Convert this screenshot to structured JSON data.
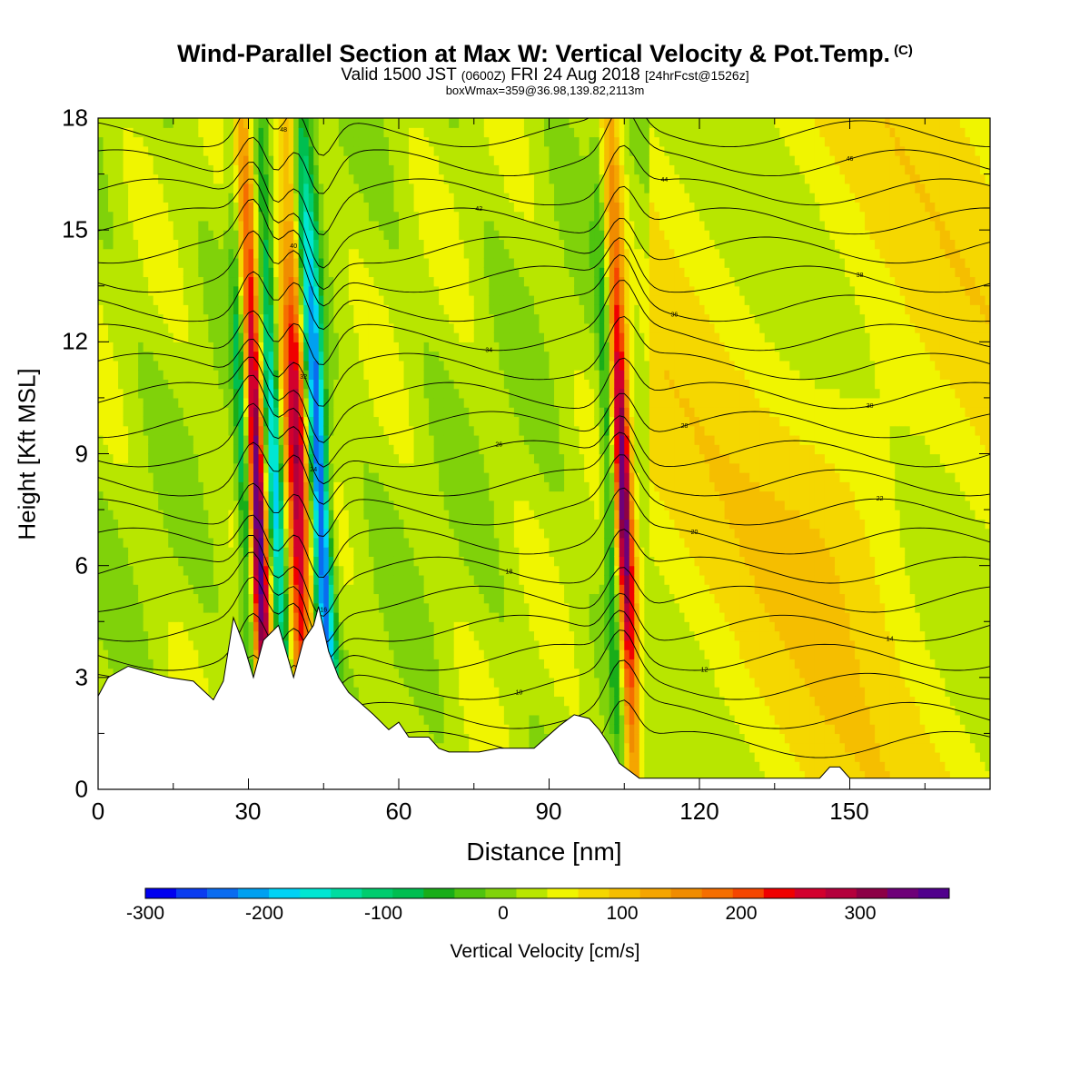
{
  "header": {
    "title": "Wind-Parallel Section at Max W: Vertical Velocity & Pot.Temp.",
    "title_mark": "(C)",
    "subtitle_pre": "Valid 1500 JST",
    "subtitle_z": "(0600Z)",
    "subtitle_mid": "FRI 24 Aug 2018",
    "subtitle_fcst": "[24hrFcst@1526z]",
    "boxline": "boxWmax=359@36.98,139.82,2113m"
  },
  "chart_data": {
    "type": "heatmap",
    "xlabel": "Distance [nm]",
    "ylabel": "Height [Kft MSL]",
    "xlim": [
      0,
      178
    ],
    "ylim": [
      0,
      18
    ],
    "xticks": [
      "0",
      "30",
      "60",
      "90",
      "120",
      "150"
    ],
    "yticks": [
      "0",
      "3",
      "6",
      "9",
      "12",
      "15",
      "18"
    ],
    "colorbar": {
      "label": "Vertical Velocity [cm/s]",
      "range": [
        -300,
        375
      ],
      "step": 25,
      "tick_labels": [
        "-300",
        "-200",
        "-100",
        "0",
        "100",
        "200",
        "300"
      ],
      "colors": [
        "#0000f0",
        "#0a3cf0",
        "#0a6cf0",
        "#00a0f0",
        "#00d2f5",
        "#00e6d2",
        "#00dca0",
        "#00cd6e",
        "#00be50",
        "#19ad19",
        "#4fc30f",
        "#80d20a",
        "#b8e600",
        "#f0f500",
        "#f5d700",
        "#f5be00",
        "#f5a500",
        "#f08c00",
        "#f56e00",
        "#f54600",
        "#f00000",
        "#d2002d",
        "#b4003c",
        "#8c0046",
        "#6e0078",
        "#50008c"
      ]
    },
    "updrafts": [
      {
        "x": 31.5,
        "peak": 330
      },
      {
        "x": 39.5,
        "peak": 230
      },
      {
        "x": 104.5,
        "peak": 300
      }
    ],
    "downdrafts": [
      {
        "x": 35.0,
        "peak": -190
      },
      {
        "x": 44.0,
        "peak": -280
      }
    ],
    "terrain_kft": [
      [
        0,
        2.5
      ],
      [
        2,
        3
      ],
      [
        6,
        3.3
      ],
      [
        14,
        3
      ],
      [
        19,
        2.9
      ],
      [
        23,
        2.4
      ],
      [
        25,
        2.9
      ],
      [
        27,
        4.6
      ],
      [
        29,
        3.9
      ],
      [
        31,
        3
      ],
      [
        33,
        4
      ],
      [
        36,
        4.4
      ],
      [
        39,
        3
      ],
      [
        41,
        4
      ],
      [
        43,
        4.4
      ],
      [
        44,
        4.9
      ],
      [
        46,
        3.7
      ],
      [
        48,
        3.0
      ],
      [
        50,
        2.6
      ],
      [
        55,
        2.0
      ],
      [
        58,
        1.6
      ],
      [
        60,
        1.8
      ],
      [
        62,
        1.4
      ],
      [
        66,
        1.4
      ],
      [
        68,
        1.1
      ],
      [
        70,
        1.0
      ],
      [
        76,
        1.0
      ],
      [
        80,
        1.1
      ],
      [
        87,
        1.1
      ],
      [
        92,
        1.7
      ],
      [
        95,
        2.0
      ],
      [
        98,
        1.9
      ],
      [
        100,
        1.6
      ],
      [
        102,
        1.2
      ],
      [
        104,
        0.7
      ],
      [
        108,
        0.3
      ],
      [
        120,
        0.3
      ],
      [
        144,
        0.3
      ],
      [
        146,
        0.6
      ],
      [
        148,
        0.6
      ],
      [
        150,
        0.3
      ],
      [
        178,
        0.3
      ]
    ],
    "theta_contour_labels": [
      "6",
      "8",
      "10",
      "12",
      "14",
      "16",
      "18",
      "20",
      "22",
      "24",
      "26",
      "28",
      "30",
      "32",
      "34",
      "36",
      "38",
      "40",
      "42",
      "44",
      "46",
      "48"
    ]
  }
}
